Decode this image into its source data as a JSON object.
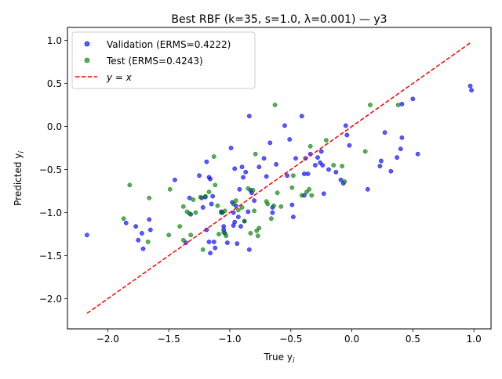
{
  "chart_data": {
    "type": "scatter",
    "title": "Best RBF (k=35, s=1.0, λ=0.001) — y3",
    "xlabel": "True y",
    "xlabel_sub": "i",
    "ylabel": "Predicted y",
    "ylabel_sub": "i",
    "xlim": [
      -2.33,
      1.14
    ],
    "ylim": [
      -2.35,
      1.15
    ],
    "xticks": [
      -2.0,
      -1.5,
      -1.0,
      -0.5,
      0.0,
      0.5,
      1.0
    ],
    "xtick_labels": [
      "−2.0",
      "−1.5",
      "−1.0",
      "−0.5",
      "0.0",
      "0.5",
      "1.0"
    ],
    "yticks": [
      -2.0,
      -1.5,
      -1.0,
      -0.5,
      0.0,
      0.5,
      1.0
    ],
    "ytick_labels": [
      "−2.0",
      "−1.5",
      "−1.0",
      "−0.5",
      "0.0",
      "0.5",
      "1.0"
    ],
    "grid": false,
    "legend_position": "top-left",
    "series": [
      {
        "name": "Validation (ERMS=0.4222)",
        "color": "#0000ff",
        "points": [
          [
            -2.17,
            -1.26
          ],
          [
            -1.85,
            -1.12
          ],
          [
            -1.77,
            -1.16
          ],
          [
            -1.75,
            -1.32
          ],
          [
            -1.72,
            -1.24
          ],
          [
            -1.71,
            -1.42
          ],
          [
            -1.66,
            -1.08
          ],
          [
            -1.65,
            -1.2
          ],
          [
            -1.45,
            -0.62
          ],
          [
            -1.36,
            -1.35
          ],
          [
            -1.33,
            -0.83
          ],
          [
            -1.32,
            -1.02
          ],
          [
            -1.25,
            -0.57
          ],
          [
            -1.23,
            -0.83
          ],
          [
            -1.22,
            -0.94
          ],
          [
            -1.2,
            -0.82
          ],
          [
            -1.19,
            -1.2
          ],
          [
            -1.19,
            -0.41
          ],
          [
            -1.17,
            -1.34
          ],
          [
            -1.17,
            -0.59
          ],
          [
            -1.16,
            -0.61
          ],
          [
            -1.16,
            -1.47
          ],
          [
            -1.15,
            -0.9
          ],
          [
            -1.14,
            -0.81
          ],
          [
            -1.13,
            -1.34
          ],
          [
            -1.12,
            -1.41
          ],
          [
            -1.07,
            -0.99
          ],
          [
            -1.06,
            -1.0
          ],
          [
            -1.05,
            -1.2
          ],
          [
            -1.05,
            -1.16
          ],
          [
            -1.04,
            -1.24
          ],
          [
            -1.02,
            -1.35
          ],
          [
            -0.99,
            -0.25
          ],
          [
            -0.98,
            -0.88
          ],
          [
            -0.97,
            -1.0
          ],
          [
            -0.97,
            -1.15
          ],
          [
            -0.96,
            -1.11
          ],
          [
            -0.96,
            -0.49
          ],
          [
            -0.95,
            -0.92
          ],
          [
            -0.94,
            -1.36
          ],
          [
            -0.93,
            -1.05
          ],
          [
            -0.92,
            -0.73
          ],
          [
            -0.91,
            -1.16
          ],
          [
            -0.9,
            -0.47
          ],
          [
            -0.89,
            -0.59
          ],
          [
            -0.88,
            -1.1
          ],
          [
            -0.87,
            -0.53
          ],
          [
            -0.85,
            -0.99
          ],
          [
            -0.84,
            -1.43
          ],
          [
            -0.84,
            0.12
          ],
          [
            -0.83,
            -0.74
          ],
          [
            -0.82,
            -0.77
          ],
          [
            -0.8,
            -0.86
          ],
          [
            -0.76,
            -0.47
          ],
          [
            -0.72,
            -0.37
          ],
          [
            -0.7,
            -0.58
          ],
          [
            -0.67,
            -0.19
          ],
          [
            -0.65,
            -0.94
          ],
          [
            -0.65,
            -1.0
          ],
          [
            -0.62,
            -0.44
          ],
          [
            -0.55,
            0.01
          ],
          [
            -0.53,
            -0.57
          ],
          [
            -0.51,
            -0.15
          ],
          [
            -0.49,
            -0.91
          ],
          [
            -0.48,
            -1.05
          ],
          [
            -0.46,
            -0.37
          ],
          [
            -0.41,
            0.12
          ],
          [
            -0.39,
            -0.8
          ],
          [
            -0.39,
            -0.55
          ],
          [
            -0.38,
            -0.37
          ],
          [
            -0.36,
            -0.55
          ],
          [
            -0.34,
            -0.32
          ],
          [
            -0.3,
            -0.45
          ],
          [
            -0.28,
            -0.36
          ],
          [
            -0.26,
            -0.42
          ],
          [
            -0.25,
            -0.29
          ],
          [
            -0.24,
            -0.45
          ],
          [
            -0.23,
            -0.78
          ],
          [
            -0.19,
            -0.5
          ],
          [
            -0.09,
            -0.62
          ],
          [
            -0.07,
            -0.66
          ],
          [
            -0.05,
            0.01
          ],
          [
            -0.04,
            -0.1
          ],
          [
            -0.02,
            -0.22
          ],
          [
            0.13,
            -0.73
          ],
          [
            0.23,
            -0.46
          ],
          [
            0.24,
            -0.4
          ],
          [
            0.27,
            -0.07
          ],
          [
            0.32,
            -0.52
          ],
          [
            0.37,
            -0.36
          ],
          [
            0.4,
            -0.26
          ],
          [
            0.41,
            0.26
          ],
          [
            0.5,
            0.32
          ],
          [
            0.54,
            -0.32
          ],
          [
            0.97,
            0.47
          ],
          [
            0.98,
            0.42
          ],
          [
            0.41,
            -0.13
          ],
          [
            -0.13,
            -0.53
          ]
        ]
      },
      {
        "name": "Test (ERMS=0.4243)",
        "color": "#008000",
        "points": [
          [
            -1.87,
            -1.07
          ],
          [
            -1.82,
            -0.68
          ],
          [
            -1.66,
            -0.83
          ],
          [
            -1.67,
            -1.34
          ],
          [
            -1.49,
            -0.73
          ],
          [
            -1.5,
            -1.26
          ],
          [
            -1.41,
            -1.16
          ],
          [
            -1.38,
            -1.32
          ],
          [
            -1.38,
            -0.93
          ],
          [
            -1.35,
            -0.99
          ],
          [
            -1.33,
            -1.01
          ],
          [
            -1.32,
            -1.26
          ],
          [
            -1.3,
            -0.85
          ],
          [
            -1.28,
            -1.0
          ],
          [
            -1.24,
            -0.82
          ],
          [
            -1.22,
            -1.43
          ],
          [
            -1.2,
            -0.81
          ],
          [
            -1.17,
            -0.76
          ],
          [
            -1.13,
            -0.35
          ],
          [
            -1.12,
            -0.68
          ],
          [
            -1.1,
            -0.92
          ],
          [
            -1.09,
            -1.25
          ],
          [
            -1.07,
            -1.0
          ],
          [
            -1.05,
            -1.23
          ],
          [
            -1.04,
            -0.98
          ],
          [
            -1.03,
            -1.27
          ],
          [
            -0.97,
            -0.9
          ],
          [
            -0.95,
            -0.86
          ],
          [
            -0.93,
            -0.97
          ],
          [
            -0.9,
            -0.94
          ],
          [
            -0.88,
            -1.1
          ],
          [
            -0.85,
            -0.72
          ],
          [
            -0.83,
            -1.24
          ],
          [
            -0.81,
            -0.74
          ],
          [
            -0.8,
            -0.98
          ],
          [
            -0.79,
            -0.32
          ],
          [
            -0.78,
            -1.21
          ],
          [
            -0.77,
            -1.27
          ],
          [
            -0.76,
            -1.18
          ],
          [
            -0.7,
            -0.87
          ],
          [
            -0.69,
            -0.9
          ],
          [
            -0.66,
            -1.07
          ],
          [
            -0.64,
            -0.92
          ],
          [
            -0.63,
            0.25
          ],
          [
            -0.61,
            -0.77
          ],
          [
            -0.58,
            -0.93
          ],
          [
            -0.49,
            -0.71
          ],
          [
            -0.48,
            -0.57
          ],
          [
            -0.41,
            -0.8
          ],
          [
            -0.37,
            -0.76
          ],
          [
            -0.35,
            -0.73
          ],
          [
            -0.34,
            -0.23
          ],
          [
            -0.33,
            -0.8
          ],
          [
            -0.21,
            -0.16
          ],
          [
            -0.15,
            -0.45
          ],
          [
            -0.08,
            -0.46
          ],
          [
            -0.06,
            -0.64
          ],
          [
            0.11,
            -0.29
          ],
          [
            0.15,
            0.25
          ],
          [
            0.38,
            0.25
          ]
        ]
      },
      {
        "name": "y = x",
        "color": "#ff0000",
        "style": "dashed",
        "x": [
          -2.17,
          0.98
        ],
        "y": [
          -2.17,
          0.98
        ]
      }
    ]
  }
}
